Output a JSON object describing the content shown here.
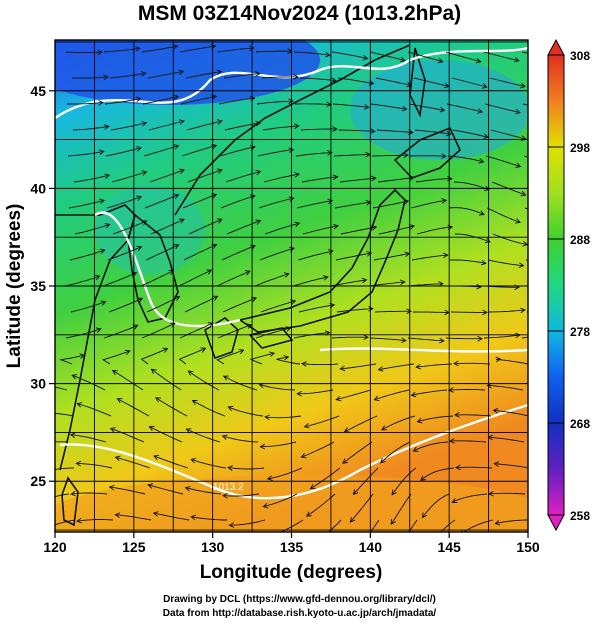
{
  "title": "MSM 03Z14Nov2024 (1013.2hPa)",
  "credits": [
    "Drawing by DCL (https://www.gfd-dennou.org/library/dcl/)",
    "Data from http://database.rish.kyoto-u.ac.jp/arch/jmadata/"
  ],
  "chart_data": {
    "type": "heatmap",
    "title": "MSM 03Z14Nov2024 (1013.2hPa)",
    "xlabel": "Longitude (degrees)",
    "ylabel": "Latitude  (degrees)",
    "xlim": [
      120,
      150
    ],
    "ylim": [
      22.4,
      47.6
    ],
    "xticks": [
      120,
      125,
      130,
      135,
      140,
      145,
      150
    ],
    "yticks": [
      25,
      30,
      35,
      40,
      45
    ],
    "grid": true,
    "overlay": "streamlines",
    "colorbar": {
      "min": 258,
      "max": 308,
      "ticks": [
        258,
        268,
        278,
        288,
        298,
        308
      ],
      "colors": [
        "#e020c0",
        "#6020c0",
        "#1030c0",
        "#1060f0",
        "#10b8e0",
        "#20d880",
        "#40d030",
        "#a0e020",
        "#e0e000",
        "#f0b000",
        "#f08020",
        "#e03020"
      ]
    },
    "contour_label": "1013.2"
  },
  "colors": {
    "cold": "#1f55e6",
    "mid": "#1ec86e",
    "warm": "#f0a21e"
  }
}
